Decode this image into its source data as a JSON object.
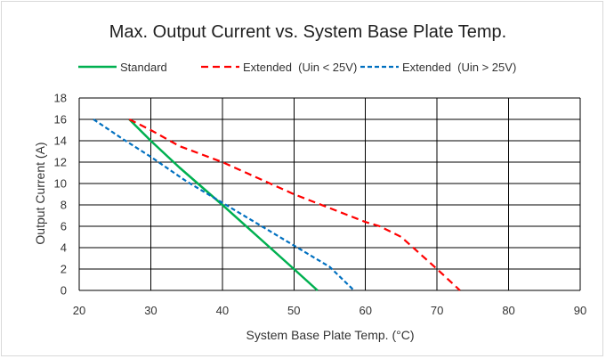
{
  "chart_data": {
    "type": "line",
    "title": "Max. Output Current vs. System Base Plate Temp.",
    "xlabel": "System Base Plate Temp. (°C)",
    "ylabel": "Output Current (A)",
    "xlim": [
      20,
      90
    ],
    "ylim": [
      0,
      18
    ],
    "xticks": [
      20,
      30,
      40,
      50,
      60,
      70,
      80,
      90
    ],
    "yticks": [
      0,
      2,
      4,
      6,
      8,
      10,
      12,
      14,
      16,
      18
    ],
    "grid": true,
    "legend_position": "top",
    "series": [
      {
        "name": "Standard",
        "color": "#00b050",
        "style": "solid",
        "points": [
          [
            27,
            16
          ],
          [
            30,
            14
          ],
          [
            34,
            11.5
          ],
          [
            40,
            8
          ],
          [
            45,
            5
          ],
          [
            50,
            2
          ],
          [
            53.3,
            0
          ]
        ]
      },
      {
        "name": "Extended  (Uin < 25V)",
        "color": "#ff0000",
        "style": "dashed",
        "points": [
          [
            27,
            16
          ],
          [
            30,
            15
          ],
          [
            34,
            13.5
          ],
          [
            40,
            12
          ],
          [
            45,
            10.5
          ],
          [
            50,
            9
          ],
          [
            55,
            7.7
          ],
          [
            60,
            6.4
          ],
          [
            62,
            6
          ],
          [
            65,
            5
          ],
          [
            70,
            2
          ],
          [
            73.2,
            0
          ]
        ]
      },
      {
        "name": "Extended  (Uin > 25V)",
        "color": "#0070c0",
        "style": "dashed",
        "points": [
          [
            22,
            16
          ],
          [
            26,
            14.2
          ],
          [
            30,
            12.5
          ],
          [
            35,
            10.2
          ],
          [
            40,
            8.2
          ],
          [
            45,
            6.2
          ],
          [
            50,
            4.2
          ],
          [
            55,
            2.2
          ],
          [
            58.4,
            0
          ]
        ]
      }
    ]
  }
}
